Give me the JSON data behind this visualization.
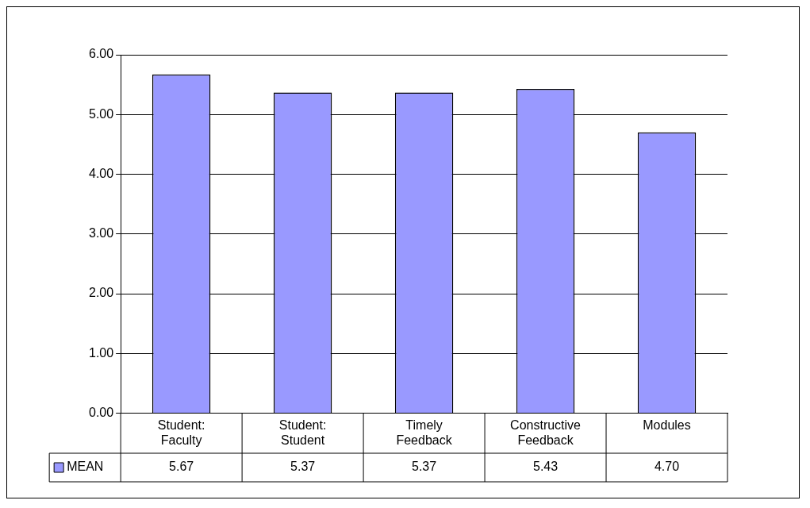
{
  "chart_data": {
    "type": "bar",
    "categories": [
      "Student: Faculty",
      "Student: Student",
      "Timely Feedback",
      "Constructive Feedback",
      "Modules"
    ],
    "series": [
      {
        "name": "MEAN",
        "color": "#9999ff",
        "values": [
          5.67,
          5.37,
          5.37,
          5.43,
          4.7
        ],
        "value_labels": [
          "5.67",
          "5.37",
          "5.37",
          "5.43",
          "4.70"
        ]
      }
    ],
    "ylim": [
      0,
      6
    ],
    "yticks": [
      {
        "value": 0,
        "label": "0.00"
      },
      {
        "value": 1,
        "label": "1.00"
      },
      {
        "value": 2,
        "label": "2.00"
      },
      {
        "value": 3,
        "label": "3.00"
      },
      {
        "value": 4,
        "label": "4.00"
      },
      {
        "value": 5,
        "label": "5.00"
      },
      {
        "value": 6,
        "label": "6.00"
      }
    ],
    "grid": "y",
    "legend": "bottom"
  }
}
